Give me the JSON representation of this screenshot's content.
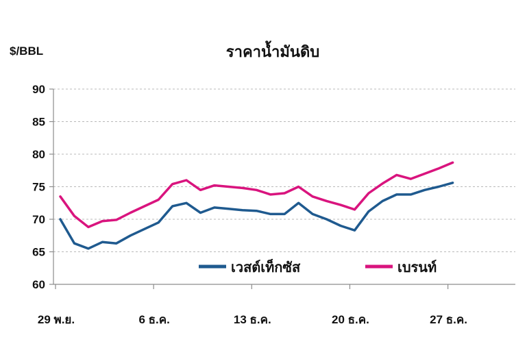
{
  "chart_data": {
    "type": "line",
    "title": "ราคาน้ำมันดิบ",
    "ylabel": "$/BBL",
    "xlabel": "",
    "ylim": [
      60,
      90
    ],
    "yticks": [
      60,
      65,
      70,
      75,
      80,
      85,
      90
    ],
    "x_tick_labels": [
      {
        "label": "29 พ.ย.",
        "index": 0
      },
      {
        "label": "6 ธ.ค.",
        "index": 7
      },
      {
        "label": "13 ธ.ค.",
        "index": 14
      },
      {
        "label": "20 ธ.ค.",
        "index": 21
      },
      {
        "label": "27 ธ.ค.",
        "index": 28
      }
    ],
    "x_count": 33,
    "grid": "horizontal dashed",
    "legend": "inside, lower center",
    "series": [
      {
        "name": "เวสต์เท็กซัส",
        "color": "#1f5a8f",
        "points": [
          [
            0,
            70.0
          ],
          [
            1,
            66.3
          ],
          [
            2,
            65.5
          ],
          [
            3,
            66.5
          ],
          [
            4,
            66.3
          ],
          [
            5,
            67.5
          ],
          [
            6,
            68.5
          ],
          [
            7,
            69.5
          ],
          [
            8,
            72.0
          ],
          [
            9,
            72.5
          ],
          [
            10,
            71.0
          ],
          [
            11,
            71.8
          ],
          [
            12,
            71.6
          ],
          [
            13,
            71.4
          ],
          [
            14,
            71.3
          ],
          [
            15,
            70.8
          ],
          [
            16,
            70.8
          ],
          [
            17,
            72.5
          ],
          [
            18,
            70.8
          ],
          [
            19,
            70.0
          ],
          [
            20,
            69.0
          ],
          [
            21,
            68.3
          ],
          [
            22,
            71.2
          ],
          [
            23,
            72.8
          ],
          [
            24,
            73.8
          ],
          [
            25,
            73.8
          ],
          [
            26,
            74.5
          ],
          [
            27,
            75.0
          ],
          [
            28,
            75.6
          ]
        ]
      },
      {
        "name": "เบรนท์",
        "color": "#d9147e",
        "points": [
          [
            0,
            73.5
          ],
          [
            1,
            70.5
          ],
          [
            2,
            68.8
          ],
          [
            3,
            69.7
          ],
          [
            4,
            69.9
          ],
          [
            5,
            71.0
          ],
          [
            6,
            72.0
          ],
          [
            7,
            73.0
          ],
          [
            8,
            75.4
          ],
          [
            9,
            76.0
          ],
          [
            10,
            74.5
          ],
          [
            11,
            75.2
          ],
          [
            12,
            75.0
          ],
          [
            13,
            74.8
          ],
          [
            14,
            74.5
          ],
          [
            15,
            73.8
          ],
          [
            16,
            74.0
          ],
          [
            17,
            75.0
          ],
          [
            18,
            73.5
          ],
          [
            19,
            72.8
          ],
          [
            20,
            72.2
          ],
          [
            21,
            71.5
          ],
          [
            22,
            74.0
          ],
          [
            23,
            75.5
          ],
          [
            24,
            76.8
          ],
          [
            25,
            76.2
          ],
          [
            26,
            77.0
          ],
          [
            27,
            77.8
          ],
          [
            28,
            78.7
          ]
        ]
      }
    ]
  }
}
